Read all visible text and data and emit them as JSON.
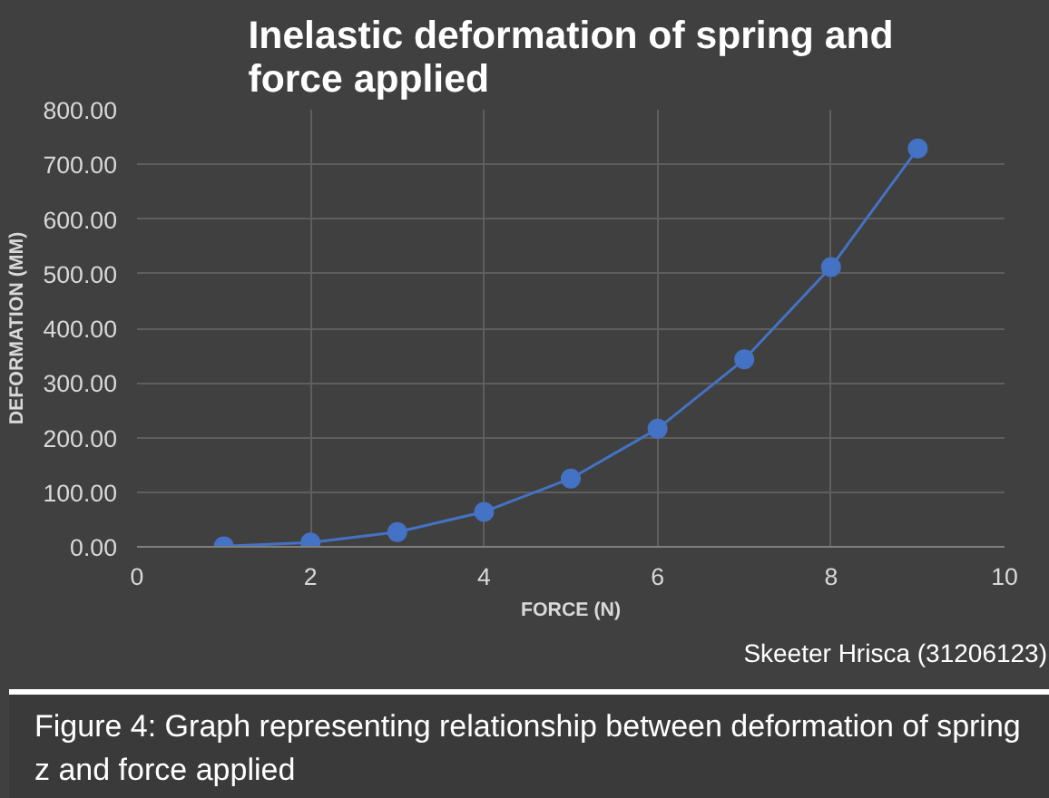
{
  "chart_data": {
    "type": "line",
    "title": "Inelastic deformation of spring and force applied",
    "xlabel": "FORCE (N)",
    "ylabel": "DEFORMATION (MM)",
    "x": [
      1,
      2,
      3,
      4,
      5,
      6,
      7,
      8,
      9
    ],
    "series": [
      {
        "color": "#4472c4",
        "values": [
          1,
          8,
          27,
          64,
          125,
          216,
          343,
          512,
          729
        ]
      }
    ],
    "xlim": [
      0,
      10
    ],
    "xticks": [
      0,
      2,
      4,
      6,
      8,
      10
    ],
    "ylim": [
      0,
      800
    ],
    "yticks": [
      {
        "value": 0,
        "label": "0.00"
      },
      {
        "value": 100,
        "label": "100.00"
      },
      {
        "value": 200,
        "label": "200.00"
      },
      {
        "value": 300,
        "label": "300.00"
      },
      {
        "value": 400,
        "label": "400.00"
      },
      {
        "value": 500,
        "label": "500.00"
      },
      {
        "value": 600,
        "label": "600.00"
      },
      {
        "value": 700,
        "label": "700.00"
      },
      {
        "value": 800,
        "label": "800.00"
      }
    ],
    "grid": true,
    "marker": "circle",
    "line_style": "solid",
    "annotations": [
      "Skeeter Hrisca (31206123)",
      "Figure 4: Graph representing relationship between deformation of spring z and force applied"
    ]
  }
}
